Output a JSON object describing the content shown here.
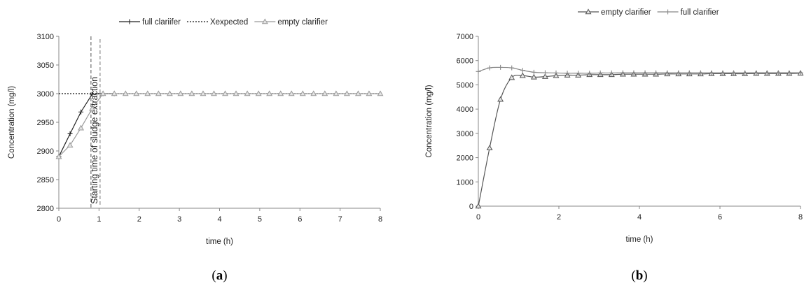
{
  "chart_data": [
    {
      "panel": "a",
      "type": "line",
      "caption": {
        "open": "(",
        "letter": "a",
        "close": ")"
      },
      "xlabel": "time (h)",
      "ylabel": "Concentration (mg/l)",
      "xlim": [
        0,
        8
      ],
      "ylim": [
        2800,
        3100
      ],
      "xticks": [
        0,
        1,
        2,
        3,
        4,
        5,
        6,
        7,
        8
      ],
      "yticks": [
        2800,
        2850,
        2900,
        2950,
        3000,
        3050,
        3100
      ],
      "grid": false,
      "legend_position": "top",
      "annotation": "Starting time of sludge extraction",
      "annotation_x": 0.8,
      "series": [
        {
          "name": "full clariifer",
          "color": "#222222",
          "marker": "plus",
          "line": "solid",
          "x": [
            0,
            0.28,
            0.55,
            0.83,
            1.1,
            1.38
          ],
          "y": [
            2890,
            2930,
            2968,
            2999,
            3000,
            3000
          ]
        },
        {
          "name": "Xexpected",
          "color": "#111111",
          "marker": "none",
          "line": "dotted",
          "x": [
            0,
            8
          ],
          "y": [
            3000,
            3000
          ]
        },
        {
          "name": "empty clarifier",
          "color": "#999999",
          "marker": "triangle",
          "line": "solid",
          "x": [
            0,
            0.28,
            0.55,
            0.83,
            1.1,
            1.38,
            1.66,
            1.93,
            2.21,
            2.48,
            2.76,
            3.03,
            3.31,
            3.59,
            3.86,
            4.14,
            4.41,
            4.69,
            4.97,
            5.24,
            5.52,
            5.79,
            6.07,
            6.34,
            6.62,
            6.9,
            7.17,
            7.45,
            7.72,
            8.0
          ],
          "y": [
            2890,
            2910,
            2940,
            2974,
            3000,
            3000,
            3000,
            3000,
            3000,
            3000,
            3000,
            3000,
            3000,
            3000,
            3000,
            3000,
            3000,
            3000,
            3000,
            3000,
            3000,
            3000,
            3000,
            3000,
            3000,
            3000,
            3000,
            3000,
            3000,
            3000
          ]
        }
      ]
    },
    {
      "panel": "b",
      "type": "line",
      "caption": {
        "open": "(",
        "letter": "b",
        "close": ")"
      },
      "xlabel": "time (h)",
      "ylabel": "Concentration (mg/l)",
      "xlim": [
        0,
        8
      ],
      "ylim": [
        0,
        7000
      ],
      "xticks": [
        0,
        2,
        4,
        6,
        8
      ],
      "yticks": [
        0,
        1000,
        2000,
        3000,
        4000,
        5000,
        6000,
        7000
      ],
      "grid": false,
      "legend_position": "top",
      "series": [
        {
          "name": "empty clarifier",
          "color": "#555555",
          "marker": "triangle",
          "line": "solid",
          "x": [
            0,
            0.28,
            0.55,
            0.83,
            1.1,
            1.38,
            1.66,
            1.93,
            2.21,
            2.48,
            2.76,
            3.03,
            3.31,
            3.59,
            3.86,
            4.14,
            4.41,
            4.69,
            4.97,
            5.24,
            5.52,
            5.79,
            6.07,
            6.34,
            6.62,
            6.9,
            7.17,
            7.45,
            7.72,
            8.0
          ],
          "y": [
            0,
            2400,
            4400,
            5300,
            5380,
            5320,
            5340,
            5380,
            5400,
            5400,
            5420,
            5420,
            5420,
            5440,
            5440,
            5440,
            5440,
            5450,
            5450,
            5450,
            5450,
            5460,
            5460,
            5460,
            5460,
            5470,
            5470,
            5470,
            5470,
            5480
          ]
        },
        {
          "name": "full clarifier",
          "color": "#888888",
          "marker": "plus",
          "line": "solid",
          "x": [
            0,
            0.28,
            0.55,
            0.83,
            1.1,
            1.38,
            1.66,
            1.93,
            2.21,
            2.48,
            2.76,
            3.03,
            3.31,
            3.59,
            3.86,
            4.14,
            4.41,
            4.69,
            4.97,
            5.24,
            5.52,
            5.79,
            6.07,
            6.34,
            6.62,
            6.9,
            7.17,
            7.45,
            7.72,
            8.0
          ],
          "y": [
            5550,
            5700,
            5720,
            5700,
            5600,
            5520,
            5500,
            5490,
            5480,
            5480,
            5480,
            5490,
            5490,
            5500,
            5500,
            5500,
            5500,
            5500,
            5500,
            5500,
            5500,
            5500,
            5500,
            5500,
            5500,
            5500,
            5500,
            5500,
            5500,
            5500
          ]
        }
      ]
    }
  ]
}
